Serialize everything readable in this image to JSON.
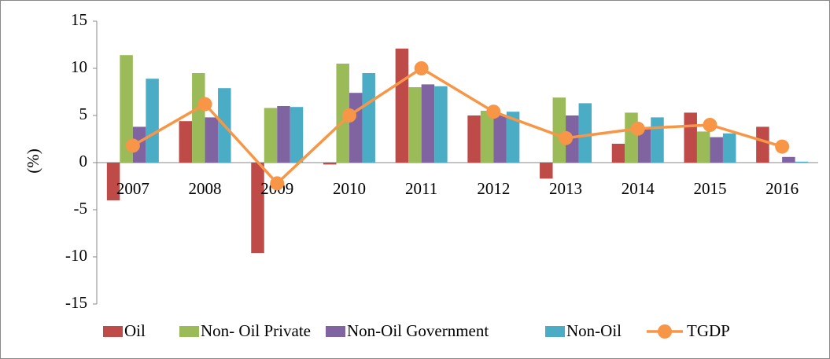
{
  "chart_data": {
    "type": "bar",
    "y_label": "(%)",
    "categories": [
      "2007",
      "2008",
      "2009",
      "2010",
      "2011",
      "2012",
      "2013",
      "2014",
      "2015",
      "2016"
    ],
    "series": [
      {
        "name": "Oil",
        "color": "#be4b48",
        "values": [
          -4.0,
          4.4,
          -9.6,
          -0.2,
          12.1,
          5.0,
          -1.7,
          2.0,
          5.3,
          3.8
        ]
      },
      {
        "name": "Non- Oil Private",
        "color": "#9bbb59",
        "values": [
          11.4,
          9.5,
          5.8,
          10.5,
          8.0,
          5.5,
          6.9,
          5.3,
          3.3,
          0
        ]
      },
      {
        "name": "Non-Oil Government",
        "color": "#8064a2",
        "values": [
          3.8,
          4.8,
          6.0,
          7.4,
          8.3,
          5.0,
          5.0,
          3.6,
          2.7,
          0.6
        ]
      },
      {
        "name": "Non-Oil",
        "color": "#4bacc6",
        "values": [
          8.9,
          7.9,
          5.9,
          9.5,
          8.1,
          5.4,
          6.3,
          4.8,
          3.1,
          0.1
        ]
      },
      {
        "name": "TGDP",
        "color": "#f79646",
        "type": "line",
        "values": [
          1.8,
          6.2,
          -2.2,
          5.0,
          10.0,
          5.4,
          2.6,
          3.6,
          4.0,
          1.7
        ]
      }
    ],
    "ylim": [
      -15,
      15
    ],
    "yticks": [
      15,
      10,
      5,
      0,
      -5,
      -10,
      -15
    ],
    "legend": "bottom"
  }
}
